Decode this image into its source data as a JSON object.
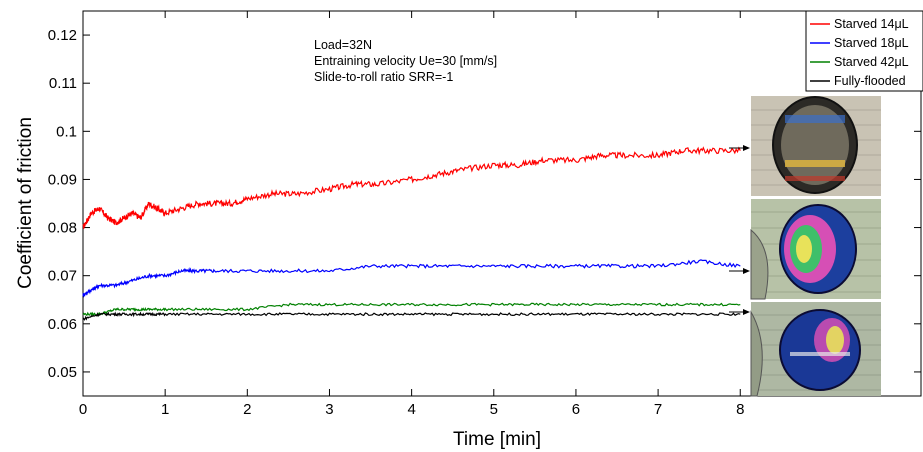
{
  "chart_data": {
    "type": "line",
    "xlabel": "Time [min]",
    "ylabel": "Coefficient of friction",
    "xlim": [
      0,
      10.2
    ],
    "ylim": [
      0.045,
      0.125
    ],
    "xticks": [
      "0",
      "1",
      "2",
      "3",
      "4",
      "5",
      "6",
      "7",
      "8"
    ],
    "yticks": [
      "0.05",
      "0.06",
      "0.07",
      "0.08",
      "0.09",
      "0.1",
      "0.11",
      "0.12"
    ],
    "xtick_values": [
      0,
      1,
      2,
      3,
      4,
      5,
      6,
      7,
      8
    ],
    "ytick_values": [
      0.05,
      0.06,
      0.07,
      0.08,
      0.09,
      0.1,
      0.11,
      0.12
    ],
    "annotations": [
      "Load=32N",
      "Entraining velocity Ue=30 [mm/s]",
      "Slide-to-roll ratio SRR=-1"
    ],
    "legend_position": "top-right",
    "series": [
      {
        "name": "Starved 14μL",
        "color": "#ff0000",
        "x": [
          0,
          0.1,
          0.2,
          0.3,
          0.4,
          0.5,
          0.6,
          0.7,
          0.8,
          0.9,
          1,
          1.2,
          1.4,
          1.6,
          1.8,
          2,
          2.3,
          2.6,
          3,
          3.3,
          3.6,
          4,
          4.3,
          4.6,
          5,
          5.3,
          5.6,
          6,
          6.3,
          6.6,
          7,
          7.3,
          7.6,
          8
        ],
        "values": [
          0.08,
          0.083,
          0.084,
          0.082,
          0.081,
          0.082,
          0.083,
          0.082,
          0.085,
          0.084,
          0.083,
          0.084,
          0.085,
          0.085,
          0.085,
          0.086,
          0.087,
          0.087,
          0.088,
          0.089,
          0.089,
          0.09,
          0.091,
          0.092,
          0.093,
          0.093,
          0.094,
          0.094,
          0.095,
          0.095,
          0.095,
          0.096,
          0.096,
          0.096
        ]
      },
      {
        "name": "Starved 18μL",
        "color": "#0000ff",
        "x": [
          0,
          0.1,
          0.2,
          0.4,
          0.6,
          0.8,
          1,
          1.2,
          1.4,
          1.6,
          2,
          2.5,
          3,
          3.5,
          4,
          4.5,
          5,
          5.5,
          6,
          6.5,
          7,
          7.5,
          8
        ],
        "values": [
          0.066,
          0.067,
          0.068,
          0.068,
          0.069,
          0.07,
          0.07,
          0.071,
          0.071,
          0.071,
          0.071,
          0.071,
          0.071,
          0.072,
          0.072,
          0.072,
          0.072,
          0.072,
          0.072,
          0.072,
          0.072,
          0.073,
          0.072
        ]
      },
      {
        "name": "Starved 42μL",
        "color": "#008000",
        "x": [
          0,
          0.2,
          0.4,
          0.6,
          0.8,
          1,
          1.5,
          2,
          2.5,
          3,
          3.5,
          4,
          4.5,
          5,
          5.5,
          6,
          6.5,
          7,
          7.5,
          8
        ],
        "values": [
          0.062,
          0.062,
          0.063,
          0.063,
          0.063,
          0.063,
          0.063,
          0.063,
          0.064,
          0.064,
          0.064,
          0.064,
          0.064,
          0.064,
          0.064,
          0.064,
          0.064,
          0.064,
          0.064,
          0.064
        ]
      },
      {
        "name": "Fully-flooded",
        "color": "#000000",
        "x": [
          0,
          0.2,
          0.4,
          0.6,
          0.8,
          1,
          1.5,
          2,
          2.5,
          3,
          3.5,
          4,
          4.5,
          5,
          5.5,
          6,
          6.5,
          7,
          7.5,
          8
        ],
        "values": [
          0.061,
          0.062,
          0.062,
          0.062,
          0.062,
          0.062,
          0.062,
          0.062,
          0.062,
          0.062,
          0.062,
          0.062,
          0.062,
          0.062,
          0.062,
          0.062,
          0.062,
          0.062,
          0.062,
          0.062
        ]
      }
    ]
  },
  "inset_images": [
    {
      "name": "contact-image-starved-14",
      "tint": "#c9c3b4"
    },
    {
      "name": "contact-image-starved-18",
      "tint": "#b7c2a7"
    },
    {
      "name": "contact-image-starved-42",
      "tint": "#aeb8a3"
    }
  ]
}
